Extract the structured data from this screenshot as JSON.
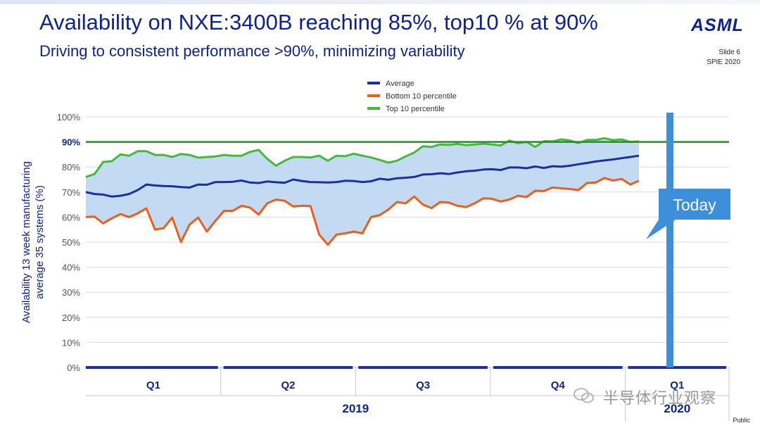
{
  "header": {
    "title": "Availability on NXE:3400B reaching 85%, top10 % at 90%",
    "subtitle": "Driving to consistent performance >90%, minimizing variability",
    "logo": "ASML",
    "slide_label": "Slide 6",
    "event_label": "SPIE  2020"
  },
  "footer": {
    "classification": "Public",
    "watermark": "半导体行业观察"
  },
  "colors": {
    "average": "#1f2f99",
    "bottom": "#e8601c",
    "top": "#48b83a",
    "band": "#c2daf2",
    "target": "#2b8a2b",
    "today": "#3e8fd9",
    "text": "#0f238c"
  },
  "chart_data": {
    "type": "line",
    "title": "",
    "ylabel": "Availability 13 week manufacturing average 35 systems (%)",
    "ylim": [
      0,
      100
    ],
    "y_ticks": [
      {
        "value": 0,
        "label": "0%"
      },
      {
        "value": 10,
        "label": "10%"
      },
      {
        "value": 20,
        "label": "20%"
      },
      {
        "value": 30,
        "label": "30%"
      },
      {
        "value": 40,
        "label": "40%"
      },
      {
        "value": 50,
        "label": "50%"
      },
      {
        "value": 60,
        "label": "60%"
      },
      {
        "value": 70,
        "label": "70%"
      },
      {
        "value": 80,
        "label": "80%"
      },
      {
        "value": 90,
        "label": "90%",
        "bold": true
      },
      {
        "value": 100,
        "label": "100%"
      }
    ],
    "x_start": 0,
    "x_end": 62,
    "quarters": [
      {
        "label": "Q1",
        "start": 0,
        "end": 13
      },
      {
        "label": "Q2",
        "start": 13,
        "end": 26
      },
      {
        "label": "Q3",
        "start": 26,
        "end": 39
      },
      {
        "label": "Q4",
        "start": 39,
        "end": 52
      },
      {
        "label": "Q1",
        "start": 52,
        "end": 62
      }
    ],
    "years": [
      {
        "label": "2019",
        "start": 0,
        "end": 52
      },
      {
        "label": "2020",
        "start": 52,
        "end": 62
      }
    ],
    "target": {
      "value": 90
    },
    "today": {
      "x": 56.3,
      "label": "Today"
    },
    "legend_position": "top-center",
    "series": [
      {
        "name": "Average",
        "key": "average",
        "values": [
          70,
          69.2,
          69,
          68.2,
          68.5,
          69.2,
          70.8,
          73,
          72.6,
          72.4,
          72.3,
          72,
          71.8,
          73,
          72.9,
          74,
          74,
          74.1,
          74.6,
          73.8,
          73.6,
          74.2,
          73.9,
          73.7,
          75,
          74.4,
          74,
          73.9,
          73.8,
          74,
          74.5,
          74.4,
          74,
          74.3,
          75.3,
          74.9,
          75.5,
          75.7,
          76,
          77,
          77.1,
          77.5,
          77.2,
          77.8,
          78.3,
          78.5,
          79,
          79.1,
          78.8,
          79.8,
          79.8,
          79.5,
          80.2,
          79.6,
          80.3,
          80.1,
          80.5,
          81.1,
          81.6,
          82.2,
          82.6,
          83,
          83.5,
          84,
          84.5
        ]
      },
      {
        "name": "Bottom 10 percentile",
        "key": "bottom",
        "values": [
          60,
          60.2,
          57.5,
          59.5,
          61.2,
          60,
          61.5,
          63.5,
          55,
          55.6,
          59.8,
          50,
          57,
          59.8,
          54.2,
          58.5,
          62.5,
          62.5,
          64.5,
          63.8,
          61,
          65.5,
          67,
          66.5,
          64.2,
          64.5,
          64.4,
          53,
          49,
          53,
          53.5,
          54.2,
          53.5,
          60,
          60.8,
          63,
          66,
          65.5,
          68.2,
          65,
          63.6,
          66,
          65.8,
          64.5,
          64,
          65.5,
          67.5,
          67.3,
          66.2,
          67,
          68.5,
          68,
          70.5,
          70.4,
          71.8,
          71.5,
          71.2,
          70.8,
          73.6,
          73.8,
          75.6,
          74.6,
          75.2,
          73,
          74.5
        ]
      },
      {
        "name": "Top 10 percentile",
        "key": "top",
        "values": [
          76,
          77.2,
          82,
          82.3,
          85,
          84.5,
          86.3,
          86.3,
          84.8,
          84.8,
          84,
          85.2,
          84.8,
          83.7,
          84,
          84.2,
          84.8,
          84.5,
          84.5,
          86,
          86.8,
          83.2,
          80.5,
          82.5,
          84,
          84,
          83.8,
          84.5,
          82.5,
          84.5,
          84.3,
          85.3,
          84.5,
          83.8,
          82.8,
          81.7,
          82.5,
          84.2,
          85.8,
          88.3,
          88,
          89,
          88.8,
          89.2,
          88.7,
          89,
          89.3,
          89,
          88.6,
          90.5,
          89.5,
          90,
          88,
          90.3,
          90.2,
          91,
          90.6,
          89.5,
          90.8,
          90.8,
          91.5,
          90.7,
          91,
          90,
          90.2
        ]
      }
    ]
  }
}
